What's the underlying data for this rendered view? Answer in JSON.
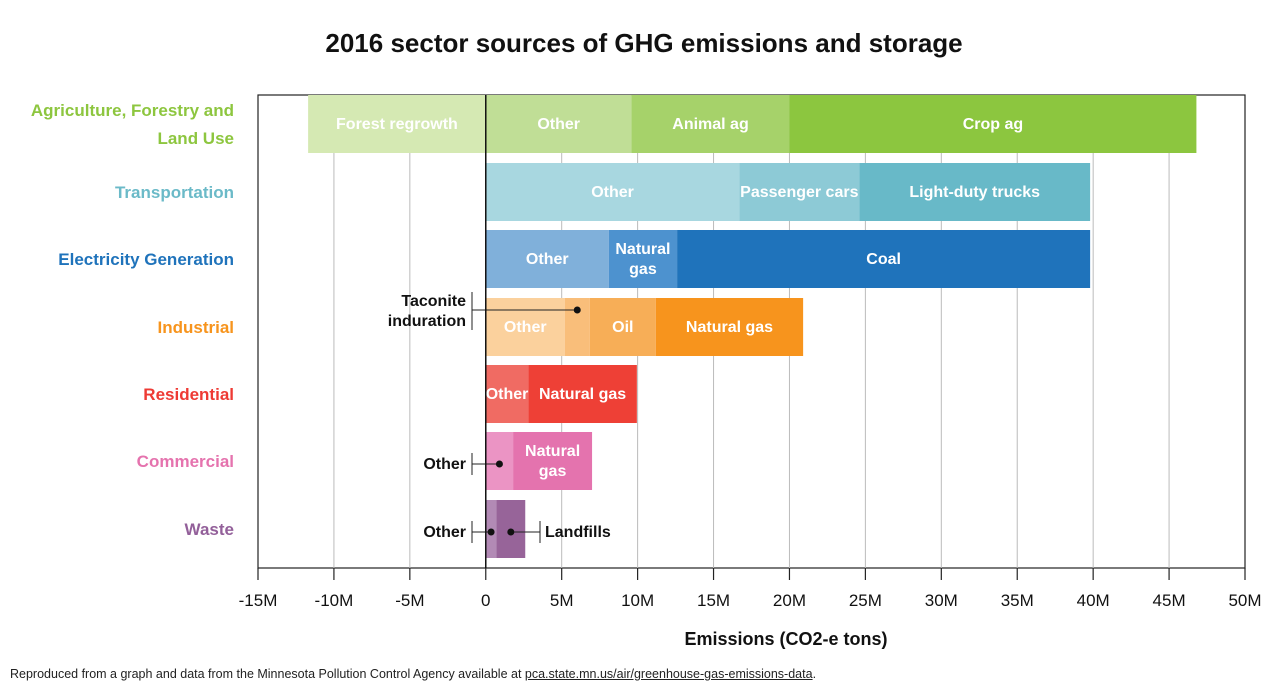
{
  "chart_data": {
    "type": "bar",
    "orientation": "horizontal",
    "stacked": true,
    "title": "2016 sector sources of GHG emissions and storage",
    "xlabel": "Emissions (CO2-e tons)",
    "ylabel": "",
    "xlim": [
      -15,
      50
    ],
    "x_unit": "M",
    "x_ticks": [
      "-15M",
      "-10M",
      "-5M",
      "0",
      "5M",
      "10M",
      "15M",
      "20M",
      "25M",
      "30M",
      "35M",
      "40M",
      "45M",
      "50M"
    ],
    "x_tick_values": [
      -15,
      -10,
      -5,
      0,
      5,
      10,
      15,
      20,
      25,
      30,
      35,
      40,
      45,
      50
    ],
    "grid": "vertical",
    "sectors": [
      {
        "name": "Agriculture, Forestry and Land Use",
        "name_lines": [
          "Agriculture, Forestry and",
          "Land Use"
        ],
        "color": "#8dc63f",
        "segments": [
          {
            "label": "Forest regrowth",
            "start": -11.7,
            "end": 0,
            "color": "#d5e9b3"
          },
          {
            "label": "Other",
            "start": 0,
            "end": 9.6,
            "color": "#c0de96"
          },
          {
            "label": "Animal ag",
            "start": 9.6,
            "end": 20.0,
            "color": "#a6d26a"
          },
          {
            "label": "Crop ag",
            "start": 20.0,
            "end": 46.8,
            "color": "#8cc63f"
          }
        ]
      },
      {
        "name": "Transportation",
        "name_lines": [
          "Transportation"
        ],
        "color": "#6bbac8",
        "segments": [
          {
            "label": "Other",
            "start": 0,
            "end": 16.7,
            "color": "#a8d7e0"
          },
          {
            "label": "Passenger cars",
            "start": 16.7,
            "end": 24.6,
            "color": "#8dcad6"
          },
          {
            "label": "Light-duty trucks",
            "start": 24.6,
            "end": 39.8,
            "color": "#68b9c8"
          }
        ]
      },
      {
        "name": "Electricity Generation",
        "name_lines": [
          "Electricity Generation"
        ],
        "color": "#1f73bb",
        "segments": [
          {
            "label": "Other",
            "start": 0,
            "end": 8.1,
            "color": "#80b0da"
          },
          {
            "label": "Natural gas",
            "label_lines": [
              "Natural",
              "gas"
            ],
            "start": 8.1,
            "end": 12.6,
            "color": "#4d92cf"
          },
          {
            "label": "Coal",
            "start": 12.6,
            "end": 39.8,
            "color": "#1f73bb"
          }
        ]
      },
      {
        "name": "Industrial",
        "name_lines": [
          "Industrial"
        ],
        "color": "#f7941d",
        "segments": [
          {
            "label": "Other",
            "start": 0,
            "end": 5.2,
            "color": "#fbd19d"
          },
          {
            "label": "Taconite induration",
            "label_lines": [
              "Taconite",
              "induration"
            ],
            "callout": "left-above",
            "start": 5.2,
            "end": 6.85,
            "color": "#f9be7a"
          },
          {
            "label": "Oil",
            "start": 6.85,
            "end": 11.2,
            "color": "#f7ae57"
          },
          {
            "label": "Natural gas",
            "start": 11.2,
            "end": 20.9,
            "color": "#f7941d"
          }
        ]
      },
      {
        "name": "Residential",
        "name_lines": [
          "Residential"
        ],
        "color": "#ee3a34",
        "segments": [
          {
            "label": "Other",
            "start": 0,
            "end": 2.8,
            "color": "#f06b63"
          },
          {
            "label": "Natural gas",
            "start": 2.8,
            "end": 9.95,
            "color": "#ee4036"
          }
        ]
      },
      {
        "name": "Commercial",
        "name_lines": [
          "Commercial"
        ],
        "color": "#e573ae",
        "segments": [
          {
            "label": "Other",
            "callout": "left",
            "start": 0,
            "end": 1.8,
            "color": "#eb94c4"
          },
          {
            "label": "Natural gas",
            "label_lines": [
              "Natural",
              "gas"
            ],
            "start": 1.8,
            "end": 7.0,
            "color": "#e473ae"
          }
        ]
      },
      {
        "name": "Waste",
        "name_lines": [
          "Waste"
        ],
        "color": "#93609a",
        "segments": [
          {
            "label": "Other",
            "callout": "left",
            "start": 0,
            "end": 0.7,
            "color": "#b28ab5"
          },
          {
            "label": "Landfills",
            "callout": "right",
            "start": 0.7,
            "end": 2.6,
            "color": "#976499"
          }
        ]
      }
    ]
  },
  "footer": {
    "text": "Reproduced from a graph and data from the Minnesota Pollution Control Agency available at ",
    "link": "pca.state.mn.us/air/greenhouse-gas-emissions-data",
    "end": "."
  }
}
